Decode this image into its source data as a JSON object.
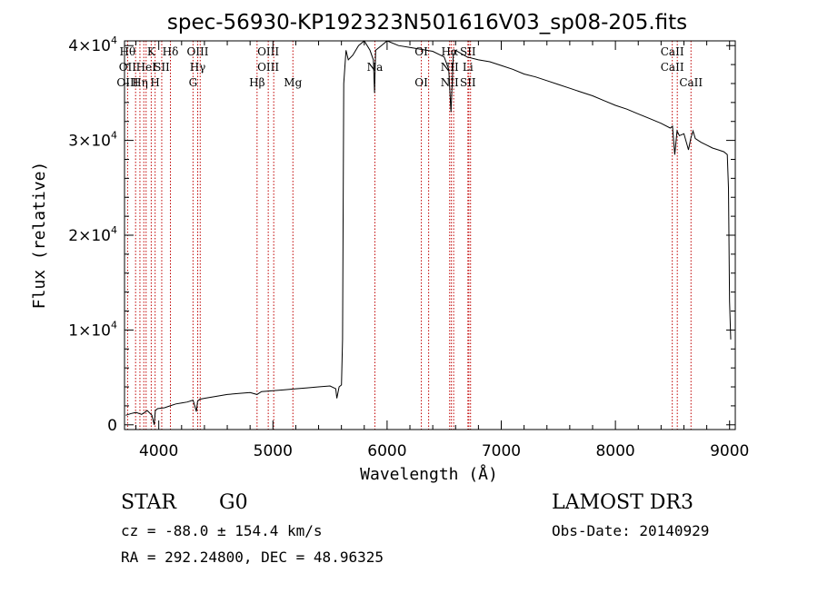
{
  "chart_data": {
    "type": "line",
    "title": "spec-56930-KP192323N501616V03_sp08-205.fits",
    "xlabel": "Wavelength (Å)",
    "ylabel": "Flux (relative)",
    "xlim": [
      3700,
      9050
    ],
    "ylim": [
      -500,
      40500
    ],
    "x_ticks": [
      {
        "value": 4000,
        "label": "4000"
      },
      {
        "value": 5000,
        "label": "5000"
      },
      {
        "value": 6000,
        "label": "6000"
      },
      {
        "value": 7000,
        "label": "7000"
      },
      {
        "value": 8000,
        "label": "8000"
      },
      {
        "value": 9000,
        "label": "9000"
      }
    ],
    "y_ticks": [
      {
        "value": 0,
        "mant": "0",
        "exp": ""
      },
      {
        "value": 10000,
        "mant": "1×10",
        "exp": "4"
      },
      {
        "value": 20000,
        "mant": "2×10",
        "exp": "4"
      },
      {
        "value": 30000,
        "mant": "3×10",
        "exp": "4"
      },
      {
        "value": 40000,
        "mant": "4×10",
        "exp": "4"
      }
    ],
    "series": [
      {
        "name": "spectrum",
        "x": [
          3710,
          3760,
          3800,
          3850,
          3900,
          3940,
          3960,
          3970,
          3990,
          4050,
          4100,
          4150,
          4200,
          4250,
          4300,
          4330,
          4340,
          4360,
          4400,
          4500,
          4600,
          4700,
          4800,
          4860,
          4900,
          5000,
          5100,
          5200,
          5300,
          5400,
          5500,
          5550,
          5560,
          5580,
          5600,
          5610,
          5620,
          5640,
          5660,
          5700,
          5750,
          5800,
          5850,
          5880,
          5890,
          5900,
          5950,
          6000,
          6100,
          6200,
          6300,
          6400,
          6500,
          6540,
          6560,
          6570,
          6580,
          6600,
          6700,
          6800,
          6900,
          7000,
          7100,
          7200,
          7300,
          7400,
          7500,
          7600,
          7700,
          7800,
          7900,
          8000,
          8100,
          8200,
          8300,
          8400,
          8480,
          8500,
          8520,
          8540,
          8560,
          8600,
          8640,
          8660,
          8680,
          8700,
          8750,
          8800,
          8850,
          8900,
          8950,
          8980,
          8990,
          9000,
          9010
        ],
        "y": [
          1000,
          1200,
          1300,
          1100,
          1500,
          1000,
          0,
          1500,
          1700,
          1800,
          2000,
          2200,
          2300,
          2400,
          2600,
          1400,
          2500,
          2700,
          2800,
          3000,
          3200,
          3300,
          3400,
          3200,
          3500,
          3600,
          3700,
          3800,
          3900,
          4000,
          4100,
          3800,
          2800,
          4000,
          4200,
          9000,
          36000,
          39500,
          38500,
          39000,
          40000,
          40500,
          39500,
          38500,
          35000,
          39500,
          40000,
          40500,
          40000,
          39800,
          39600,
          39400,
          38800,
          37500,
          33000,
          36000,
          39000,
          39500,
          38800,
          38500,
          38300,
          37900,
          37500,
          37000,
          36700,
          36300,
          35900,
          35500,
          35100,
          34700,
          34200,
          33700,
          33300,
          32800,
          32300,
          31800,
          31300,
          31500,
          28500,
          31000,
          30500,
          30700,
          29000,
          30200,
          31000,
          30200,
          29800,
          29500,
          29200,
          29000,
          28800,
          28500,
          25000,
          13000,
          9000
        ]
      }
    ],
    "lines": [
      {
        "w": 3727,
        "top": "Hθ",
        "mid": "OII",
        "bot": "OIII"
      },
      {
        "w": 3797,
        "top": "",
        "mid": "",
        "bot": ""
      },
      {
        "w": 3835,
        "top": "",
        "mid": "",
        "bot": "Hη"
      },
      {
        "w": 3869,
        "top": "",
        "mid": "",
        "bot": ""
      },
      {
        "w": 3889,
        "top": "",
        "mid": "HeI",
        "bot": ""
      },
      {
        "w": 3934,
        "top": "K",
        "mid": "",
        "bot": ""
      },
      {
        "w": 3968,
        "top": "",
        "mid": "",
        "bot": "H"
      },
      {
        "w": 4026,
        "top": "",
        "mid": "SII",
        "bot": ""
      },
      {
        "w": 4102,
        "top": "Hδ",
        "mid": "",
        "bot": ""
      },
      {
        "w": 4300,
        "top": "",
        "mid": "",
        "bot": "G"
      },
      {
        "w": 4341,
        "top": "OIII",
        "mid": "Hγ",
        "bot": ""
      },
      {
        "w": 4363,
        "top": "",
        "mid": "",
        "bot": ""
      },
      {
        "w": 4861,
        "top": "",
        "mid": "",
        "bot": "Hβ"
      },
      {
        "w": 4959,
        "top": "OIII",
        "mid": "OIII",
        "bot": ""
      },
      {
        "w": 5007,
        "top": "",
        "mid": "",
        "bot": ""
      },
      {
        "w": 5175,
        "top": "",
        "mid": "",
        "bot": "Mg"
      },
      {
        "w": 5893,
        "top": "",
        "mid": "Na",
        "bot": ""
      },
      {
        "w": 6300,
        "top": "OI",
        "mid": "",
        "bot": "OI"
      },
      {
        "w": 6364,
        "top": "",
        "mid": "",
        "bot": ""
      },
      {
        "w": 6548,
        "top": "Hα",
        "mid": "NII",
        "bot": "NII"
      },
      {
        "w": 6563,
        "top": "",
        "mid": "",
        "bot": ""
      },
      {
        "w": 6583,
        "top": "",
        "mid": "",
        "bot": ""
      },
      {
        "w": 6708,
        "top": "SII",
        "mid": "Li",
        "bot": "SII"
      },
      {
        "w": 6716,
        "top": "",
        "mid": "",
        "bot": ""
      },
      {
        "w": 6731,
        "top": "",
        "mid": "",
        "bot": ""
      },
      {
        "w": 8498,
        "top": "CaII",
        "mid": "CaII",
        "bot": ""
      },
      {
        "w": 8542,
        "top": "",
        "mid": "",
        "bot": ""
      },
      {
        "w": 8662,
        "top": "",
        "mid": "",
        "bot": "CaII"
      }
    ]
  },
  "info": {
    "obj_class": "STAR",
    "subclass": "G0",
    "survey": "LAMOST DR3",
    "cz": "cz = -88.0 ± 154.4 km/s",
    "obs_date": "Obs-Date: 20140929",
    "radec": "RA = 292.24800, DEC =  48.96325"
  }
}
